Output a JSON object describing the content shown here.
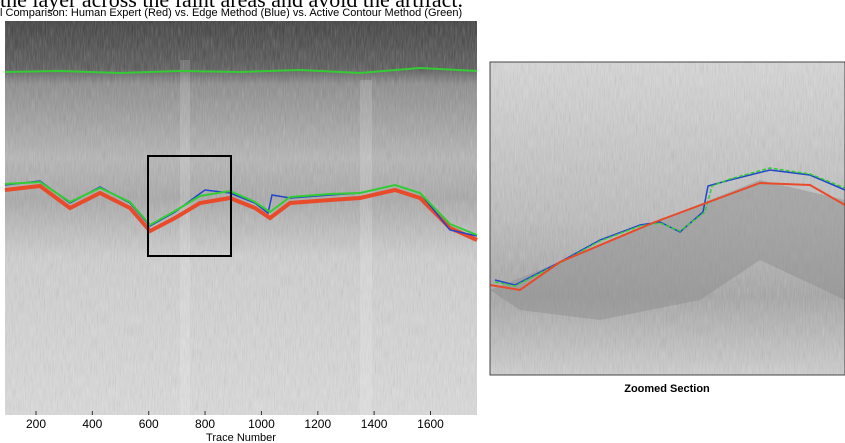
{
  "top_text": "the layer across the faint areas and avoid the artifact.",
  "figure": {
    "title": "l Comparison: Human Expert (Red) vs. Edge Method (Blue) vs. Active Contour Method (Green)",
    "x_label": "Trace Number",
    "xlim": [
      90,
      1765
    ],
    "xticks": [
      200,
      400,
      600,
      800,
      1000,
      1200,
      1400,
      1600
    ],
    "zoom_caption": "Zoomed Section"
  }
}
